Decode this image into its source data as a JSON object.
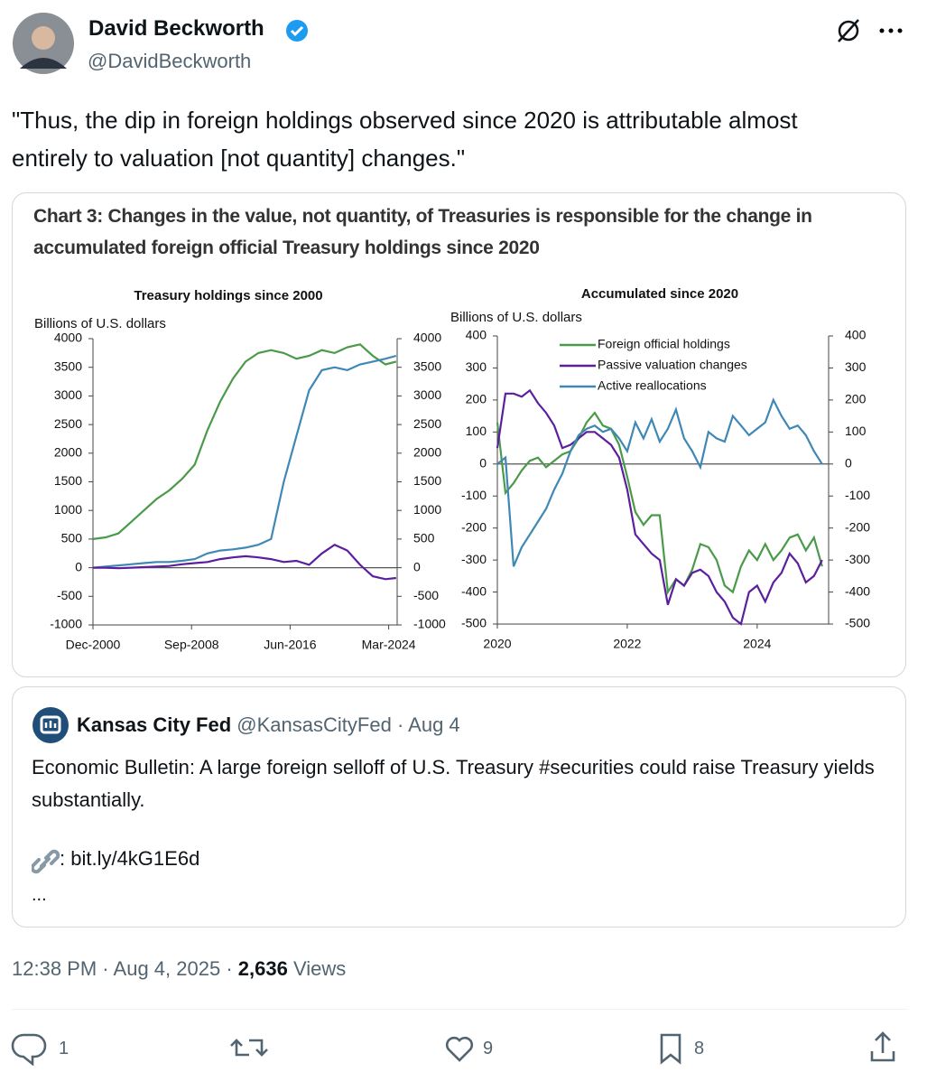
{
  "author": {
    "name": "David Beckworth",
    "handle": "@DavidBeckworth"
  },
  "text": "\"Thus, the dip in foreign holdings observed since 2020 is attributable almost entirely to valuation [not quantity] changes.\"",
  "chart_title": "Chart 3: Changes in the value, not quantity, of Treasuries is responsible for the change in accumulated foreign official Treasury holdings since 2020",
  "chart_data": [
    {
      "type": "line",
      "title": "Treasury holdings since 2000",
      "ylabel": "Billions of U.S. dollars",
      "x": [
        "Dec-2000",
        "Dec-2001",
        "Dec-2002",
        "Dec-2003",
        "Dec-2004",
        "Dec-2005",
        "Dec-2006",
        "Dec-2007",
        "Dec-2008",
        "Dec-2009",
        "Dec-2010",
        "Dec-2011",
        "Dec-2012",
        "Dec-2013",
        "Dec-2014",
        "Dec-2015",
        "Dec-2016",
        "Dec-2017",
        "Dec-2018",
        "Dec-2019",
        "Dec-2020",
        "Dec-2021",
        "Dec-2022",
        "Dec-2023",
        "Oct-2024"
      ],
      "xlim": [
        "Dec-2000",
        "Nov-2024"
      ],
      "xticks": [
        "Dec-2000",
        "Sep-2008",
        "Jun-2016",
        "Mar-2024"
      ],
      "ylim": [
        -1000,
        4000
      ],
      "yticks": [
        -1000,
        -500,
        0,
        500,
        1000,
        1500,
        2000,
        2500,
        3000,
        3500,
        4000
      ],
      "y2lim": [
        -1000,
        4000
      ],
      "y2ticks": [
        -1000,
        -500,
        0,
        500,
        1000,
        1500,
        2000,
        2500,
        3000,
        3500,
        4000
      ],
      "series": [
        {
          "color": "#4a9a4a",
          "values": [
            500,
            530,
            600,
            800,
            1000,
            1200,
            1350,
            1550,
            1800,
            2400,
            2900,
            3300,
            3600,
            3750,
            3800,
            3750,
            3650,
            3700,
            3800,
            3750,
            3850,
            3900,
            3700,
            3550,
            3600
          ]
        },
        {
          "color": "#3f88b5",
          "values": [
            0,
            20,
            40,
            60,
            80,
            100,
            100,
            120,
            150,
            250,
            300,
            320,
            350,
            400,
            500,
            1500,
            2300,
            3100,
            3450,
            3500,
            3450,
            3550,
            3600,
            3650,
            3700
          ]
        },
        {
          "color": "#5b1f9e",
          "values": [
            0,
            0,
            -10,
            0,
            10,
            20,
            30,
            60,
            80,
            100,
            150,
            180,
            200,
            180,
            150,
            100,
            120,
            50,
            250,
            400,
            300,
            50,
            -150,
            -200,
            -180
          ]
        }
      ]
    },
    {
      "type": "line",
      "title": "Accumulated since 2020",
      "ylabel": "Billions of U.S. dollars",
      "x": [
        2020,
        2020.125,
        2020.25,
        2020.375,
        2020.5,
        2020.625,
        2020.75,
        2020.875,
        2021,
        2021.125,
        2021.25,
        2021.375,
        2021.5,
        2021.625,
        2021.75,
        2021.875,
        2022,
        2022.125,
        2022.25,
        2022.375,
        2022.5,
        2022.625,
        2022.75,
        2022.875,
        2023,
        2023.125,
        2023.25,
        2023.375,
        2023.5,
        2023.625,
        2023.75,
        2023.875,
        2024,
        2024.125,
        2024.25,
        2024.375,
        2024.5,
        2024.625,
        2024.75,
        2024.875,
        2025
      ],
      "xlim": [
        2020,
        2025.1
      ],
      "xticks": [
        2020,
        2022,
        2024
      ],
      "ylim": [
        -500,
        400
      ],
      "yticks": [
        -500,
        -400,
        -300,
        -200,
        -100,
        0,
        100,
        200,
        300,
        400
      ],
      "y2lim": [
        -500,
        400
      ],
      "y2ticks": [
        -500,
        -400,
        -300,
        -200,
        -100,
        0,
        100,
        200,
        300,
        400
      ],
      "legend": "top",
      "series": [
        {
          "name": "Foreign official holdings",
          "color": "#4a9a4a",
          "values": [
            130,
            -90,
            -60,
            -20,
            10,
            20,
            -10,
            10,
            30,
            40,
            80,
            130,
            160,
            120,
            110,
            60,
            -40,
            -150,
            -190,
            -160,
            -160,
            -400,
            -360,
            -380,
            -330,
            -250,
            -260,
            -300,
            -380,
            -400,
            -320,
            -270,
            -300,
            -250,
            -300,
            -270,
            -230,
            -220,
            -270,
            -230,
            -320
          ]
        },
        {
          "name": "Passive valuation changes",
          "color": "#5b1f9e",
          "values": [
            50,
            220,
            220,
            210,
            230,
            190,
            160,
            120,
            50,
            60,
            80,
            100,
            100,
            80,
            60,
            20,
            -80,
            -220,
            -250,
            -280,
            -300,
            -440,
            -360,
            -380,
            -340,
            -330,
            -350,
            -400,
            -430,
            -480,
            -500,
            -400,
            -380,
            -430,
            -370,
            -340,
            -280,
            -310,
            -370,
            -350,
            -300
          ]
        },
        {
          "name": "Active reallocations",
          "color": "#3f88b5",
          "values": [
            0,
            20,
            -320,
            -260,
            -220,
            -180,
            -140,
            -80,
            -30,
            40,
            90,
            110,
            120,
            100,
            110,
            80,
            40,
            130,
            80,
            140,
            70,
            110,
            170,
            80,
            40,
            -10,
            100,
            80,
            70,
            150,
            120,
            90,
            110,
            130,
            200,
            150,
            110,
            120,
            90,
            40,
            0
          ]
        }
      ]
    }
  ],
  "quote": {
    "name": "Kansas City Fed",
    "handle": "@KansasCityFed",
    "separator": "·",
    "date": "Aug 4",
    "text": "Economic Bulletin: A large foreign selloff of U.S. Treasury #securities could raise Treasury yields substantially.",
    "link": ": bit.ly/4kG1E6d",
    "more": "..."
  },
  "footer": {
    "time": "12:38 PM",
    "separator": "·",
    "date": "Aug 4, 2025",
    "views": "2,636",
    "views_label": "Views"
  },
  "actions": {
    "replies": 1,
    "likes": 9,
    "bookmarks": 8
  }
}
